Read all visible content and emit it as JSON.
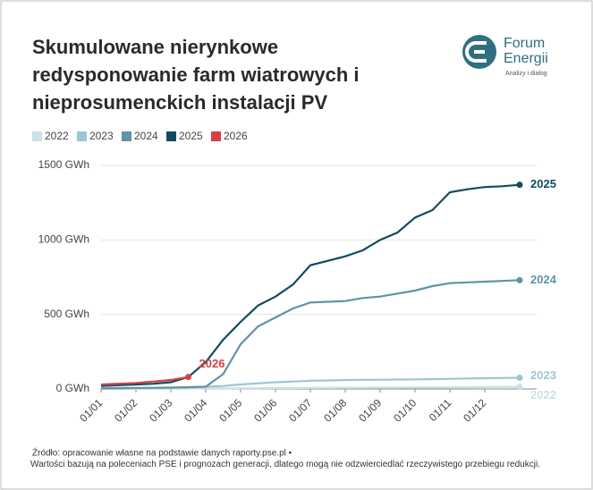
{
  "chart_data": {
    "type": "line",
    "title_lines": [
      "Skumulowane nierynkowe",
      "redysponowanie farm wiatrowych i",
      "nieprosumenckich instalacji PV"
    ],
    "logo": {
      "name_lines": [
        "Forum",
        "Energii"
      ],
      "tagline": "Analizy i dialog"
    },
    "x": [
      "01/01",
      "15/01",
      "01/02",
      "15/02",
      "01/03",
      "15/03",
      "01/04",
      "15/04",
      "01/05",
      "15/05",
      "01/06",
      "15/06",
      "01/07",
      "15/07",
      "01/08",
      "15/08",
      "01/09",
      "15/09",
      "01/10",
      "15/10",
      "01/11",
      "15/11",
      "01/12",
      "15/12",
      "31/12"
    ],
    "xticks": [
      "01/01",
      "01/02",
      "01/03",
      "01/04",
      "01/05",
      "01/06",
      "01/07",
      "01/08",
      "01/09",
      "01/10",
      "01/11",
      "01/12"
    ],
    "ylim": [
      0,
      1500
    ],
    "yticks": [
      {
        "value": 0,
        "label": "0 GWh"
      },
      {
        "value": 500,
        "label": "500 GWh"
      },
      {
        "value": 1000,
        "label": "1000 GWh"
      },
      {
        "value": 1500,
        "label": "1500 GWh"
      }
    ],
    "grid": true,
    "series": [
      {
        "name": "2022",
        "color": "#c9e1e7",
        "values": [
          0,
          1,
          2,
          2,
          3,
          3,
          4,
          4,
          5,
          5,
          6,
          6,
          7,
          7,
          8,
          8,
          9,
          9,
          10,
          10,
          11,
          12,
          13,
          14,
          15
        ]
      },
      {
        "name": "2023",
        "color": "#9cc6d1",
        "values": [
          0,
          2,
          4,
          6,
          8,
          10,
          15,
          20,
          30,
          38,
          45,
          50,
          55,
          57,
          60,
          61,
          62,
          63,
          64,
          66,
          68,
          70,
          72,
          74,
          75
        ]
      },
      {
        "name": "2024",
        "color": "#5f93a6",
        "values": [
          5,
          6,
          7,
          8,
          9,
          12,
          15,
          100,
          300,
          420,
          480,
          540,
          580,
          585,
          590,
          610,
          620,
          640,
          660,
          690,
          710,
          715,
          720,
          725,
          730
        ]
      },
      {
        "name": "2025",
        "color": "#124b5f",
        "values": [
          20,
          25,
          30,
          35,
          45,
          80,
          180,
          330,
          450,
          560,
          620,
          700,
          830,
          860,
          890,
          930,
          1000,
          1050,
          1150,
          1200,
          1320,
          1340,
          1355,
          1360,
          1370
        ]
      },
      {
        "name": "2026",
        "color": "#d64045",
        "values": [
          30,
          35,
          40,
          50,
          60,
          80,
          null,
          null,
          null,
          null,
          null,
          null,
          null,
          null,
          null,
          null,
          null,
          null,
          null,
          null,
          null,
          null,
          null,
          null,
          null
        ]
      }
    ],
    "source": "Źródło: opracowanie własne na podstawie danych raporty.pse.pl •",
    "note": "Wartości bazują na poleceniach PSE i prognozach generacji, dlatego mogą nie odzwierciedlać rzeczywistego przebiegu redukcji."
  }
}
